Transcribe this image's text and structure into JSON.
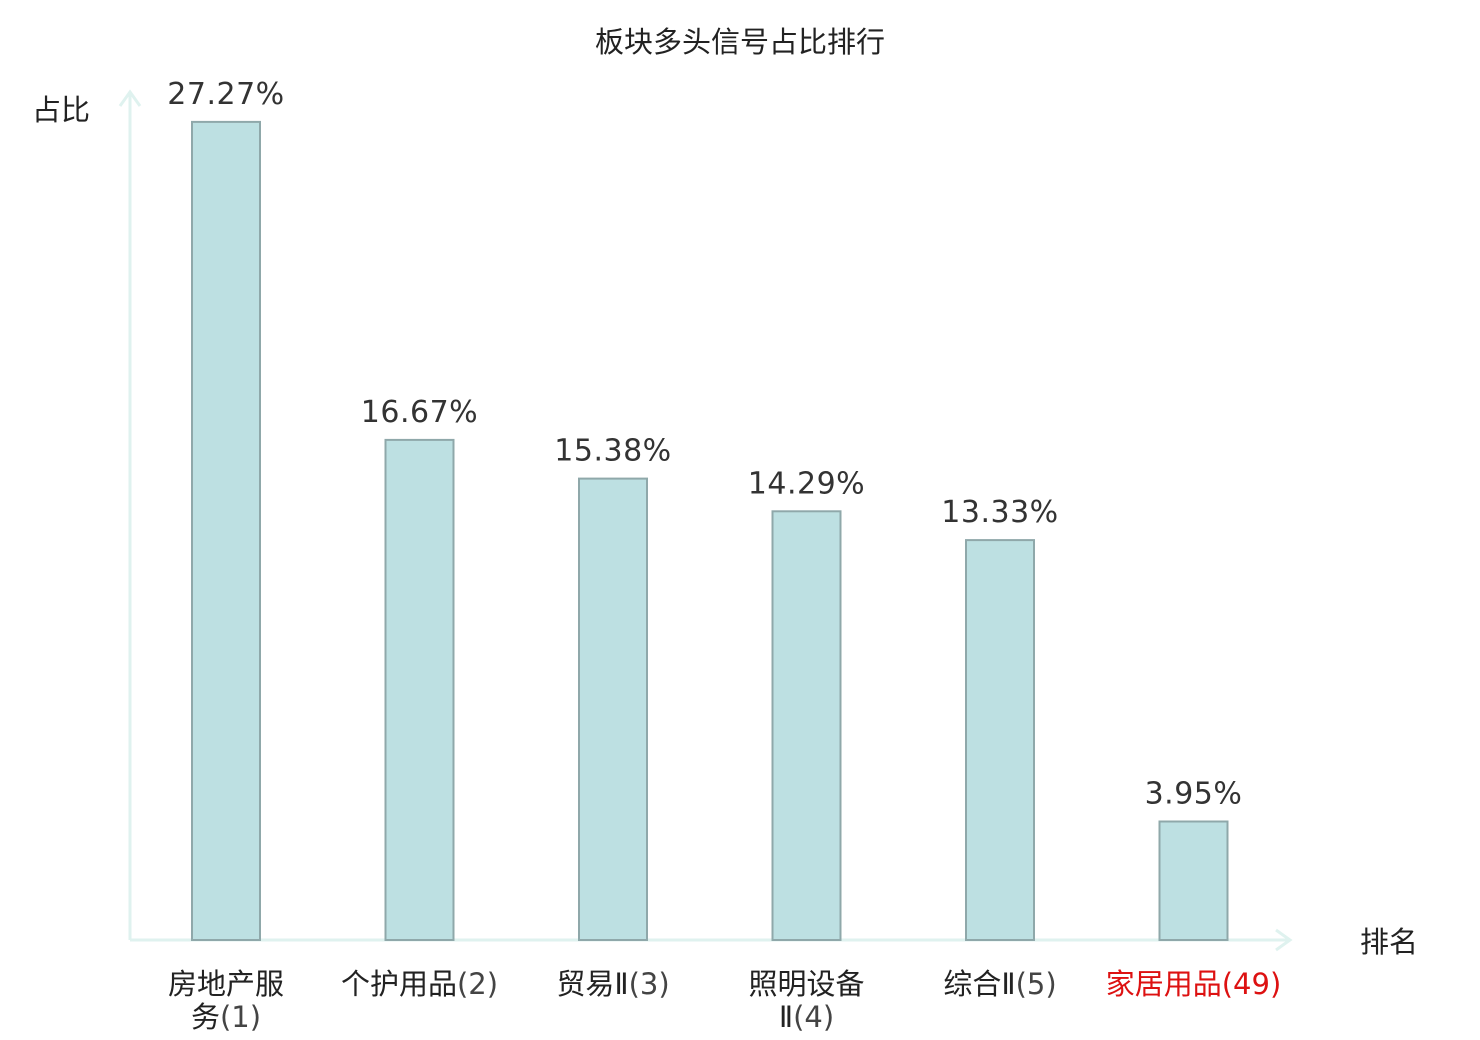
{
  "chart_data": {
    "type": "bar",
    "title": "板块多头信号占比排行",
    "ylabel": "占比",
    "xlabel": "排名",
    "ylim": [
      0,
      30
    ],
    "grid": false,
    "categories": [
      {
        "lines": [
          {
            "name": "房地产服",
            "rank": ""
          },
          {
            "name": "务",
            "rank": "(1)"
          }
        ],
        "highlight": false
      },
      {
        "lines": [
          {
            "name": "个护用品",
            "rank": "(2)"
          }
        ],
        "highlight": false
      },
      {
        "lines": [
          {
            "name": "贸易Ⅱ",
            "rank": "(3)"
          }
        ],
        "highlight": false
      },
      {
        "lines": [
          {
            "name": "照明设备",
            "rank": ""
          },
          {
            "name": "Ⅱ",
            "rank": "(4)"
          }
        ],
        "highlight": false
      },
      {
        "lines": [
          {
            "name": "综合Ⅱ",
            "rank": "(5)"
          }
        ],
        "highlight": false
      },
      {
        "lines": [
          {
            "name": "家居用品",
            "rank": "(49)"
          }
        ],
        "highlight": true
      }
    ],
    "values": [
      27.27,
      16.67,
      15.38,
      14.29,
      13.33,
      3.95
    ],
    "value_labels": [
      "27.27%",
      "16.67%",
      "15.38%",
      "14.29%",
      "13.33%",
      "3.95%"
    ],
    "colors": {
      "bar_fill": "#bde0e2",
      "bar_stroke": "#8fa8aa",
      "axis": "#dff2ef",
      "label_text": "#222222",
      "rank_text": "#444444",
      "highlight": "#dd1111"
    }
  }
}
